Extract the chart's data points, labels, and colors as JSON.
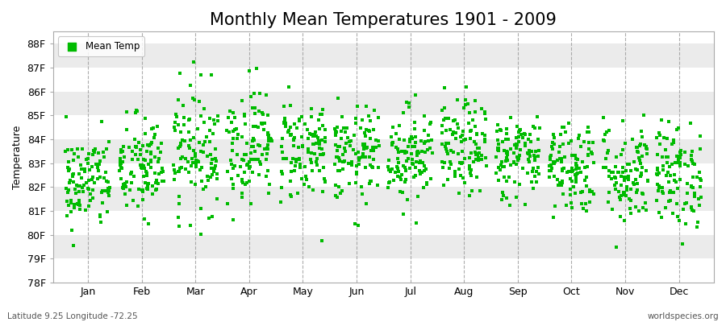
{
  "title": "Monthly Mean Temperatures 1901 - 2009",
  "ylabel": "Temperature",
  "xlabel": "",
  "subtitle": "Latitude 9.25 Longitude -72.25",
  "watermark": "worldspecies.org",
  "ylim": [
    78,
    88.5
  ],
  "yticks": [
    78,
    79,
    80,
    81,
    82,
    83,
    84,
    85,
    86,
    87,
    88
  ],
  "ytick_labels": [
    "78F",
    "79F",
    "80F",
    "81F",
    "82F",
    "83F",
    "84F",
    "85F",
    "86F",
    "87F",
    "88F"
  ],
  "months": [
    "Jan",
    "Feb",
    "Mar",
    "Apr",
    "May",
    "Jun",
    "Jul",
    "Aug",
    "Sep",
    "Oct",
    "Nov",
    "Dec"
  ],
  "marker_color": "#00bb00",
  "marker": "s",
  "marker_size": 2.5,
  "bg_color": "#ffffff",
  "plot_bg_light": "#f0f0f0",
  "plot_bg_dark": "#e0e0e0",
  "n_years": 109,
  "seed": 42,
  "mean_temps": [
    82.2,
    82.8,
    83.6,
    83.8,
    83.6,
    83.3,
    83.4,
    83.6,
    83.3,
    82.9,
    82.6,
    82.5
  ],
  "std_temps": [
    1.0,
    1.1,
    1.3,
    1.2,
    1.1,
    1.0,
    1.0,
    1.0,
    0.9,
    1.0,
    1.1,
    1.1
  ],
  "jitter_scale": 0.42,
  "title_fontsize": 15,
  "label_fontsize": 9,
  "tick_fontsize": 9,
  "dashed_line_color": "#999999",
  "band_colors": [
    "#ffffff",
    "#ebebeb"
  ]
}
